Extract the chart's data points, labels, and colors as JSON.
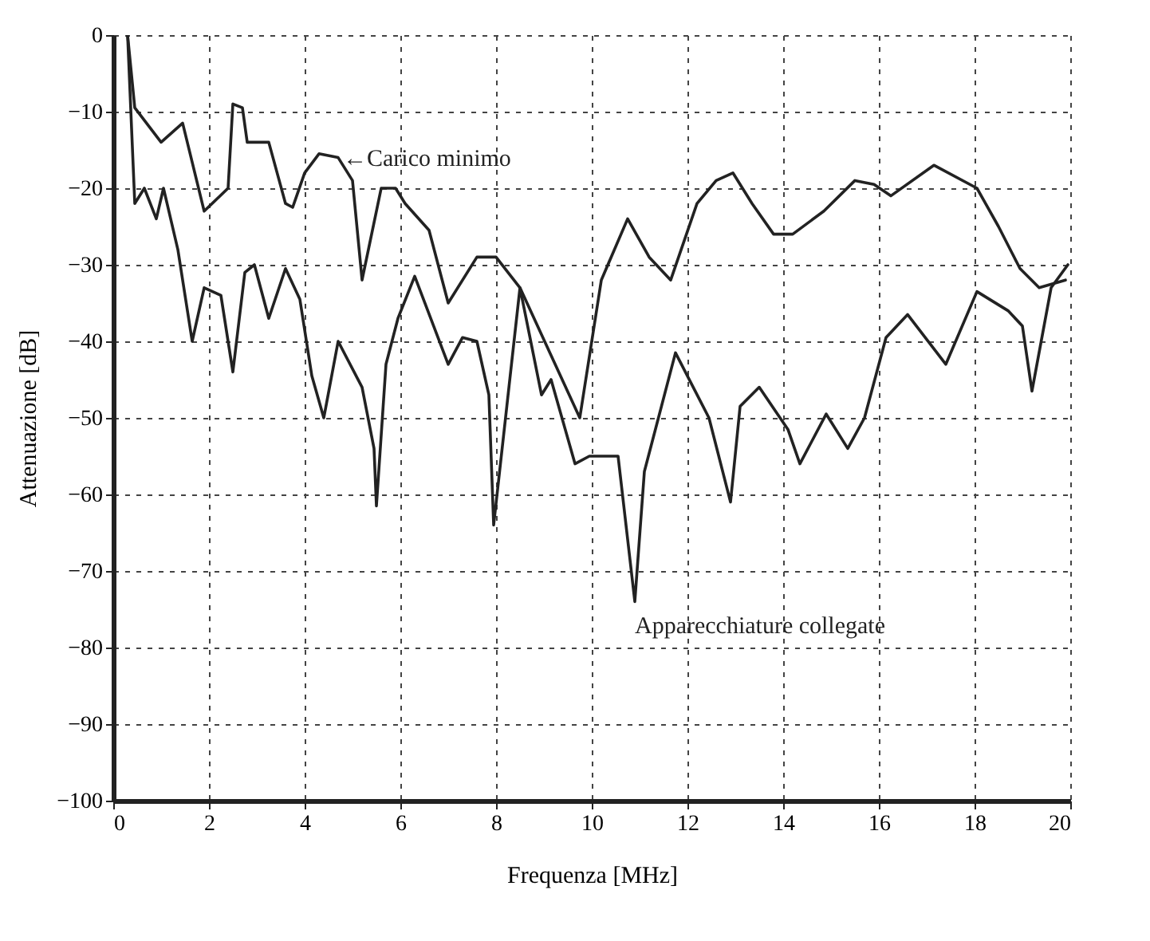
{
  "chart_data": {
    "type": "line",
    "xlabel": "Frequenza [MHz]",
    "ylabel": "Attenuazione [dB]",
    "xlim": [
      0,
      20
    ],
    "xticks": [
      0,
      2,
      4,
      6,
      8,
      10,
      12,
      14,
      16,
      18,
      20
    ],
    "ylim": [
      -100,
      0
    ],
    "yticks": [
      -100,
      -90,
      -80,
      -70,
      -60,
      -50,
      -40,
      -30,
      -20,
      -10,
      0
    ],
    "grid": true,
    "line_style": "solid",
    "series": [
      {
        "color": "#222222",
        "x": [
          0.3,
          0.45,
          1.0,
          1.45,
          1.9,
          2.4,
          2.5,
          2.7,
          2.8,
          3.25,
          3.6,
          3.75,
          4.0,
          4.3,
          4.7,
          5.0,
          5.2,
          5.6,
          5.9,
          6.1,
          6.6,
          7.0,
          7.6,
          8.0,
          8.5,
          9.75,
          10.2,
          10.75,
          11.2,
          11.65,
          12.2,
          12.6,
          12.95,
          13.35,
          13.8,
          14.2,
          14.85,
          15.5,
          15.9,
          16.25,
          17.15,
          18.05,
          18.5,
          18.95,
          19.35,
          19.9
        ],
        "values": [
          0,
          -9.5,
          -14,
          -11.5,
          -23,
          -20,
          -9,
          -9.5,
          -14,
          -14,
          -22,
          -22.5,
          -18,
          -15.5,
          -16,
          -19,
          -32,
          -20,
          -20,
          -22,
          -25.5,
          -35,
          -29,
          -29,
          -33,
          -50,
          -32,
          -24,
          -29,
          -32,
          -22,
          -19,
          -18,
          -22,
          -26,
          -26,
          -23,
          -19,
          -19.5,
          -21,
          -17,
          -20,
          -25,
          -30.5,
          -33,
          -32
        ]
      },
      {
        "color": "#222222",
        "x": [
          0.3,
          0.45,
          0.65,
          0.9,
          1.05,
          1.35,
          1.6,
          1.65,
          1.9,
          2.25,
          2.5,
          2.75,
          2.95,
          3.25,
          3.6,
          3.9,
          4.15,
          4.4,
          4.7,
          5.2,
          5.45,
          5.5,
          5.7,
          5.95,
          6.3,
          7.0,
          7.3,
          7.6,
          7.85,
          7.95,
          8.5,
          8.95,
          9.15,
          9.65,
          9.95,
          10.55,
          10.9,
          11.1,
          11.75,
          12.45,
          12.9,
          13.1,
          13.5,
          14.1,
          14.35,
          14.9,
          15.35,
          15.7,
          16.15,
          16.6,
          17.4,
          18.05,
          18.7,
          19.0,
          19.2,
          19.6,
          19.95
        ],
        "values": [
          0,
          -22,
          -20,
          -24,
          -20,
          -28,
          -38,
          -40,
          -33,
          -34,
          -44,
          -31,
          -30,
          -37,
          -30.5,
          -34.5,
          -44.5,
          -50,
          -40,
          -46,
          -54,
          -61.5,
          -43,
          -37,
          -31.5,
          -43,
          -39.5,
          -40,
          -47,
          -64,
          -33,
          -47,
          -45,
          -56,
          -55,
          -55,
          -74,
          -57,
          -41.5,
          -50,
          -61,
          -48.5,
          -46,
          -51.5,
          -56,
          -49.5,
          -54,
          -50,
          -39.5,
          -36.5,
          -43,
          -33.5,
          -36,
          -38,
          -46.5,
          -33,
          -30
        ]
      }
    ],
    "annotations": [
      {
        "text": "←Carico minimo",
        "x": 4.8,
        "y": -16
      },
      "Apparecchiature collegate"
    ]
  }
}
